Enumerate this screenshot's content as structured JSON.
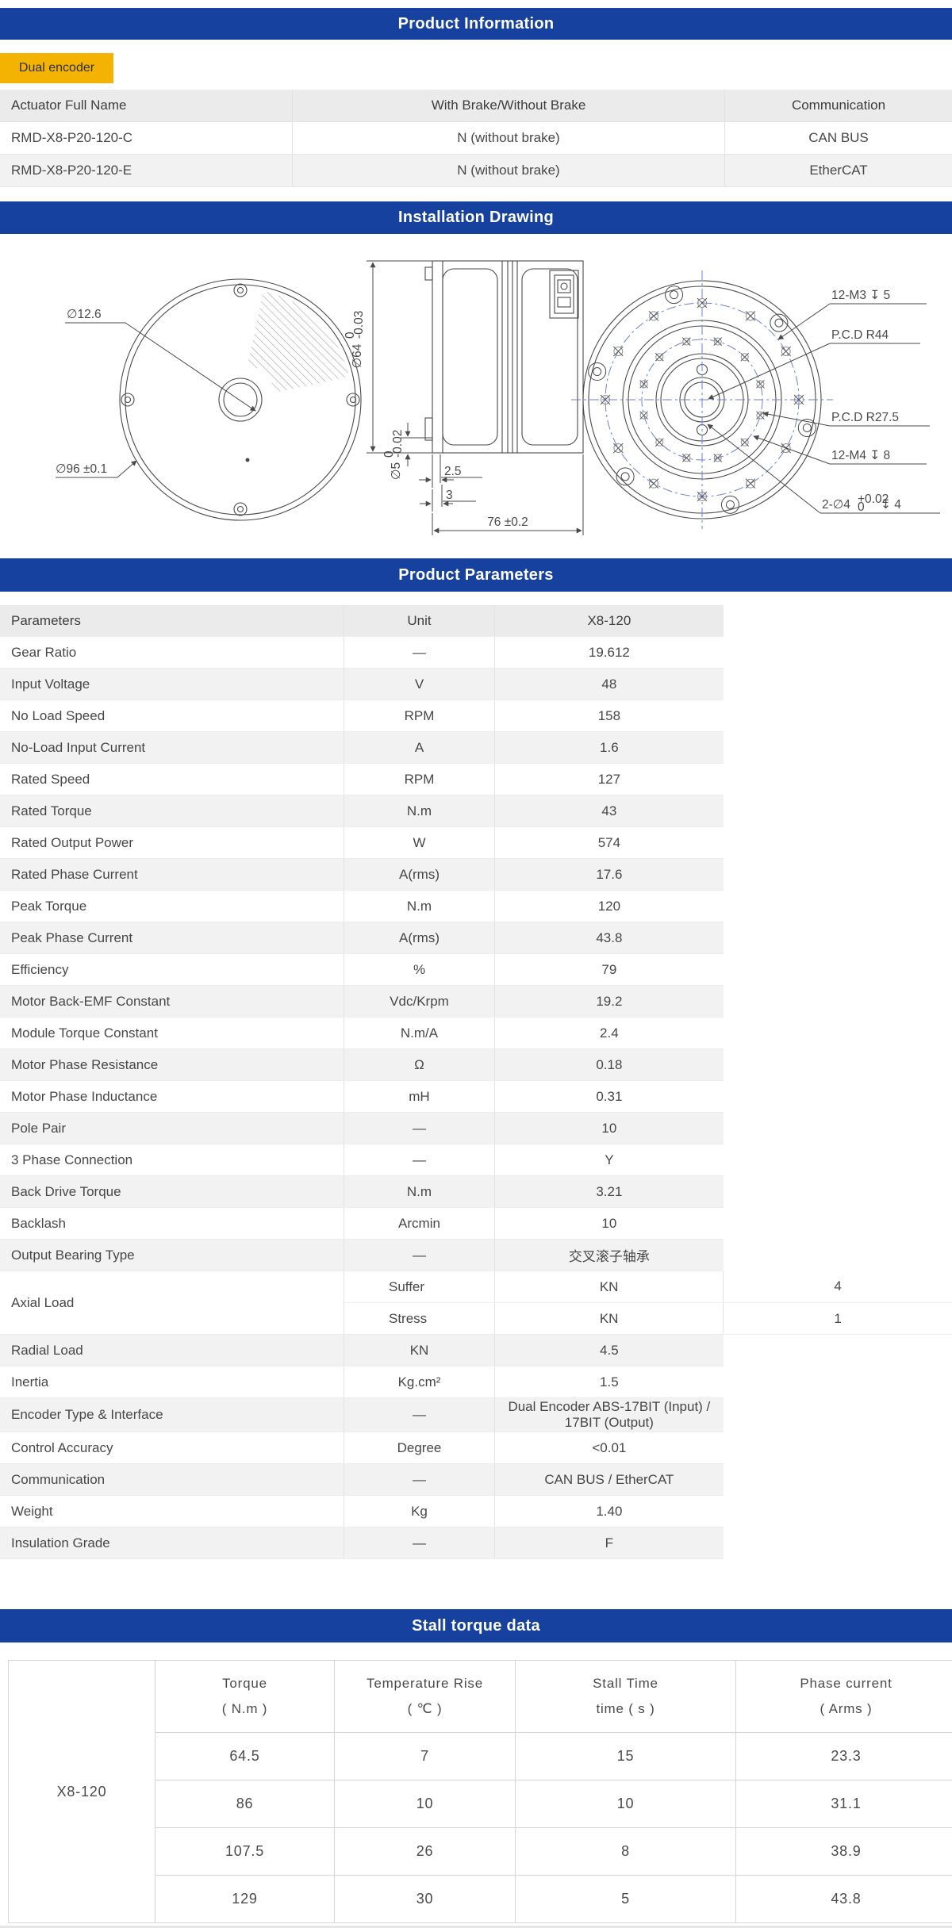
{
  "colors": {
    "header_blue": "#16419E",
    "badge_yellow": "#F5B301",
    "header_row_gray": "#EBEBEB",
    "alt_row_gray": "#F2F2F2",
    "border_gray": "#D5D5D5",
    "drawing_centerline_blue": "#6B7FD7"
  },
  "product_information": {
    "title": "Product Information",
    "badge": "Dual encoder",
    "table": {
      "headers": [
        "Actuator Full Name",
        "With Brake/Without Brake",
        "Communication"
      ],
      "rows": [
        [
          "RMD-X8-P20-120-C",
          "N (without brake)",
          "CAN BUS"
        ],
        [
          "RMD-X8-P20-120-E",
          "N (without brake)",
          "EtherCAT"
        ]
      ]
    }
  },
  "installation_drawing": {
    "title": "Installation Drawing",
    "labels": {
      "front_hole": "∅12.6",
      "front_od": "∅96 ±0.1",
      "side_d64": "∅64",
      "side_d64_tol_top": "0",
      "side_d64_tol_bot": "-0.03",
      "side_d5": "∅5",
      "side_d5_tol_top": "0",
      "side_d5_tol_bot": "-0.02",
      "dim_flange": "2.5",
      "dim_step": "3",
      "dim_length": "76 ±0.2",
      "rear_m3": "12-M3 ↧ 5",
      "rear_pcd_outer": "P.C.D R44",
      "rear_pcd_inner": "P.C.D R27.5",
      "rear_m4": "12-M4 ↧ 8",
      "rear_pin_prefix": "2-∅4",
      "rear_pin_tol_top": "+0.02",
      "rear_pin_tol_bot": "0",
      "rear_pin_suffix": "↧ 4"
    }
  },
  "product_parameters": {
    "title": "Product Parameters",
    "headers": [
      "Parameters",
      "Unit",
      "X8-120"
    ],
    "rows_a": [
      [
        "Gear Ratio",
        "—",
        "19.612"
      ],
      [
        "Input Voltage",
        "V",
        "48"
      ],
      [
        "No Load Speed",
        "RPM",
        "158"
      ],
      [
        "No-Load Input Current",
        "A",
        "1.6"
      ],
      [
        "Rated Speed",
        "RPM",
        "127"
      ],
      [
        "Rated Torque",
        "N.m",
        "43"
      ],
      [
        "Rated Output Power",
        "W",
        "574"
      ],
      [
        "Rated Phase Current",
        "A(rms)",
        "17.6"
      ],
      [
        "Peak Torque",
        "N.m",
        "120"
      ],
      [
        "Peak Phase Current",
        "A(rms)",
        "43.8"
      ],
      [
        "Efficiency",
        "%",
        "79"
      ],
      [
        "Motor Back-EMF Constant",
        "Vdc/Krpm",
        "19.2"
      ],
      [
        "Module Torque Constant",
        "N.m/A",
        "2.4"
      ],
      [
        "Motor Phase Resistance",
        "Ω",
        "0.18"
      ],
      [
        "Motor Phase Inductance",
        "mH",
        "0.31"
      ],
      [
        "Pole Pair",
        "—",
        "10"
      ],
      [
        "3 Phase Connection",
        "—",
        "Y"
      ],
      [
        "Back Drive Torque",
        "N.m",
        "3.21"
      ],
      [
        "Backlash",
        "Arcmin",
        "10"
      ],
      [
        "Output Bearing Type",
        "—",
        "交叉滚子轴承"
      ]
    ],
    "axial_load": {
      "label": "Axial Load",
      "rows": [
        [
          "Suffer",
          "KN",
          "4"
        ],
        [
          "Stress",
          "KN",
          "1"
        ]
      ]
    },
    "rows_b": [
      [
        "Radial Load",
        "KN",
        "4.5"
      ],
      [
        "Inertia",
        "Kg.cm²",
        "1.5"
      ],
      [
        "Encoder Type & Interface",
        "—",
        "Dual Encoder ABS-17BIT (Input) / 17BIT (Output)"
      ],
      [
        "Control Accuracy",
        "Degree",
        "<0.01"
      ],
      [
        "Communication",
        "—",
        "CAN BUS / EtherCAT"
      ],
      [
        "Weight",
        "Kg",
        "1.40"
      ],
      [
        "Insulation Grade",
        "—",
        "F"
      ]
    ]
  },
  "stall_torque": {
    "title": "Stall torque data",
    "model": "X8-120",
    "headers": [
      {
        "line1": "Torque",
        "line2": "( N.m )"
      },
      {
        "line1": "Temperature Rise",
        "line2": "( ℃ )"
      },
      {
        "line1": "Stall Time",
        "line2": "time ( s )"
      },
      {
        "line1": "Phase current",
        "line2": "( Arms )"
      }
    ],
    "rows": [
      [
        "64.5",
        "7",
        "15",
        "23.3"
      ],
      [
        "86",
        "10",
        "10",
        "31.1"
      ],
      [
        "107.5",
        "26",
        "8",
        "38.9"
      ],
      [
        "129",
        "30",
        "5",
        "43.8"
      ]
    ]
  }
}
